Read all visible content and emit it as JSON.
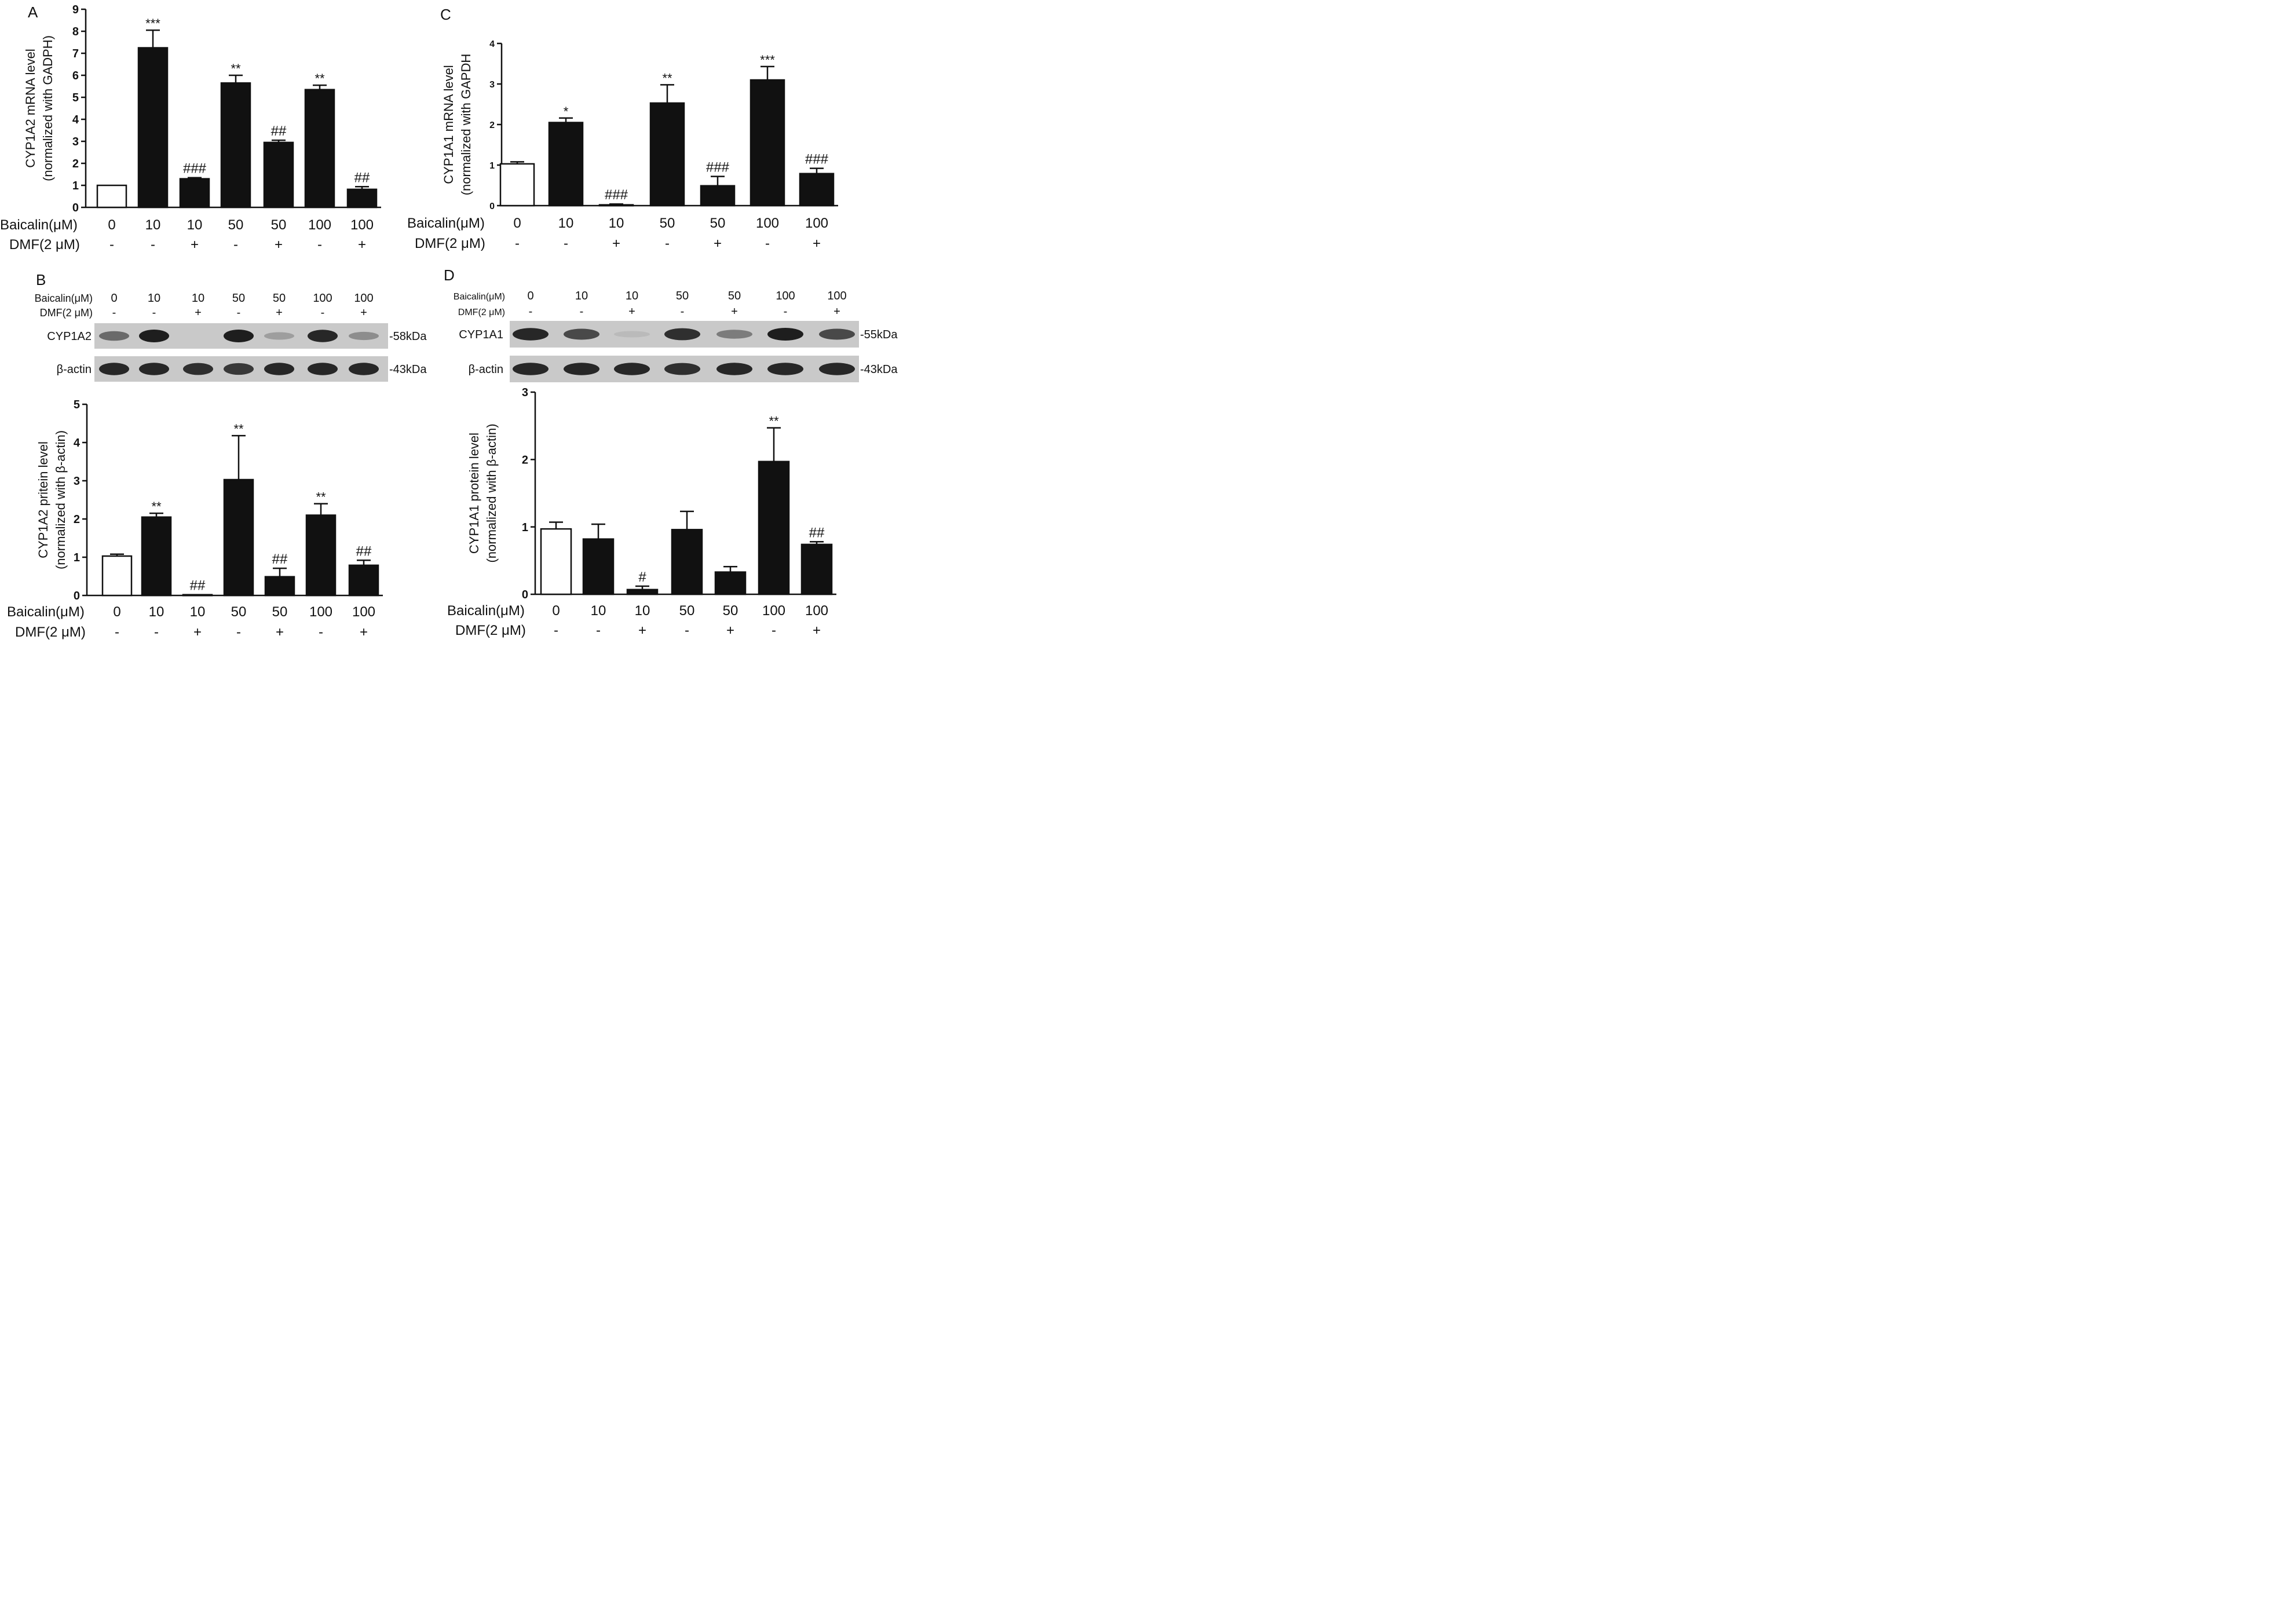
{
  "panels": {
    "A": "A",
    "B": "B",
    "C": "C",
    "D": "D"
  },
  "chart_data": [
    {
      "id": "A",
      "type": "bar",
      "ylabel": "CYP1A2 mRNA level",
      "ylabel2": "(normalized with GADPH)",
      "ylim": [
        0,
        9
      ],
      "yticks": [
        "0",
        "1",
        "2",
        "3",
        "4",
        "5",
        "6",
        "7",
        "8",
        "9"
      ],
      "values": [
        1.0,
        7.25,
        1.3,
        5.65,
        2.95,
        5.35,
        0.82
      ],
      "errors": [
        0.0,
        0.8,
        0.05,
        0.35,
        0.1,
        0.2,
        0.12
      ],
      "annotations": [
        "",
        "***",
        "###",
        "**",
        "##",
        "**",
        "##"
      ],
      "row1_label": "Baicalin(μM)",
      "row1": [
        "0",
        "10",
        "10",
        "50",
        "50",
        "100",
        "100"
      ],
      "row2_label": "DMF(2 μM)",
      "row2": [
        "-",
        "-",
        "+",
        "-",
        "+",
        "-",
        "+"
      ]
    },
    {
      "id": "C",
      "type": "bar",
      "ylabel": "CYP1A1 mRNA level",
      "ylabel2": "(normalized with GAPDH",
      "ylim": [
        0,
        4
      ],
      "yticks": [
        "0",
        "1",
        "2",
        "3",
        "4"
      ],
      "values": [
        1.03,
        2.05,
        0.02,
        2.53,
        0.49,
        3.1,
        0.79
      ],
      "errors": [
        0.05,
        0.11,
        0.02,
        0.45,
        0.23,
        0.33,
        0.13
      ],
      "annotations": [
        "",
        "*",
        "###",
        "**",
        "###",
        "***",
        "###"
      ],
      "row1_label": "Baicalin(μM)",
      "row1": [
        "0",
        "10",
        "10",
        "50",
        "50",
        "100",
        "100"
      ],
      "row2_label": "DMF(2 μM)",
      "row2": [
        "-",
        "-",
        "+",
        "-",
        "+",
        "-",
        "+"
      ]
    },
    {
      "id": "B",
      "type": "bar",
      "ylabel": "CYP1A2 pritein level",
      "ylabel2": "(normalized with β-actin)",
      "ylim": [
        0,
        5
      ],
      "yticks": [
        "0",
        "1",
        "2",
        "3",
        "4",
        "5"
      ],
      "values": [
        1.03,
        2.05,
        0.02,
        3.03,
        0.49,
        2.1,
        0.79
      ],
      "errors": [
        0.05,
        0.1,
        0.0,
        1.15,
        0.22,
        0.3,
        0.13
      ],
      "annotations": [
        "",
        "**",
        "##",
        "**",
        "##",
        "**",
        "##"
      ],
      "row1_label": "Baicalin(μM)",
      "row1": [
        "0",
        "10",
        "10",
        "50",
        "50",
        "100",
        "100"
      ],
      "row2_label": "DMF(2 μM)",
      "row2": [
        "-",
        "-",
        "+",
        "-",
        "+",
        "-",
        "+"
      ]
    },
    {
      "id": "D",
      "type": "bar",
      "ylabel": "CYP1A1 protein level",
      "ylabel2": "(normalized with β-actin)",
      "ylim": [
        0,
        3
      ],
      "yticks": [
        "0",
        "1",
        "2",
        "3"
      ],
      "values": [
        0.97,
        0.82,
        0.07,
        0.96,
        0.33,
        1.97,
        0.74
      ],
      "errors": [
        0.1,
        0.22,
        0.05,
        0.27,
        0.08,
        0.5,
        0.04
      ],
      "annotations": [
        "",
        "",
        "#",
        "",
        "",
        "**",
        "##"
      ],
      "row1_label": "Baicalin(μM)",
      "row1": [
        "0",
        "10",
        "10",
        "50",
        "50",
        "100",
        "100"
      ],
      "row2_label": "DMF(2 μM)",
      "row2": [
        "-",
        "-",
        "+",
        "-",
        "+",
        "-",
        "+"
      ]
    }
  ],
  "blots": [
    {
      "id": "B",
      "header_label1": "Baicalin(μM)",
      "header1": [
        "0",
        "10",
        "10",
        "50",
        "50",
        "100",
        "100"
      ],
      "header_label2": "DMF(2 μM)",
      "header2": [
        "-",
        "-",
        "+",
        "-",
        "+",
        "-",
        "+"
      ],
      "strips": [
        {
          "label": "CYP1A2",
          "size": "-58kDa",
          "intensity": [
            0.55,
            1.0,
            0.0,
            1.0,
            0.25,
            0.95,
            0.35
          ]
        },
        {
          "label": "β-actin",
          "size": "-43kDa",
          "intensity": [
            0.95,
            0.95,
            0.9,
            0.85,
            0.95,
            0.95,
            0.95
          ]
        }
      ]
    },
    {
      "id": "D",
      "header_label1": "Baicalin(μM)",
      "header1": [
        "0",
        "10",
        "10",
        "50",
        "50",
        "100",
        "100"
      ],
      "header_label2": "DMF(2 μM)",
      "header2": [
        "-",
        "-",
        "+",
        "-",
        "+",
        "-",
        "+"
      ],
      "strips": [
        {
          "label": "CYP1A1",
          "size": "-55kDa",
          "intensity": [
            0.95,
            0.75,
            0.08,
            0.9,
            0.45,
            1.0,
            0.75
          ]
        },
        {
          "label": "β-actin",
          "size": "-43kDa",
          "intensity": [
            0.95,
            0.95,
            0.95,
            0.9,
            0.95,
            0.95,
            0.95
          ]
        }
      ]
    }
  ]
}
